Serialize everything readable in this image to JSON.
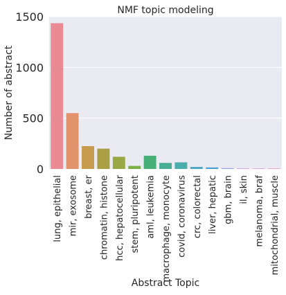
{
  "chart_data": {
    "type": "bar",
    "title": "NMF topic modeling",
    "xlabel": "Abstract Topic",
    "ylabel": "Number of abstract",
    "ylim": [
      0,
      1500
    ],
    "yticks": [
      0,
      500,
      1000,
      1500
    ],
    "grid": true,
    "categories": [
      "lung, epithelial",
      "mir, exosome",
      "breast, er",
      "chromatin, histone",
      "hcc, hepatocellular",
      "stem, pluripotent",
      "aml, leukemia",
      "macrophage, monocyte",
      "covid, coronavirus",
      "crc, colorectal",
      "liver, hepatic",
      "gbm, brain",
      "il, skin",
      "melanoma, braf",
      "mitochondrial, muscle"
    ],
    "values": [
      1435,
      550,
      225,
      200,
      120,
      30,
      130,
      60,
      65,
      20,
      15,
      8,
      5,
      5,
      5
    ],
    "colors": [
      "#ea8a95",
      "#e3936b",
      "#c89c4e",
      "#aa9f45",
      "#99a844",
      "#7bb044",
      "#47b076",
      "#4aae94",
      "#4aaeab",
      "#4ca6c2",
      "#4d9fd6",
      "#8f9fe8",
      "#be8fe8",
      "#e08ad8",
      "#e88bb5"
    ]
  }
}
